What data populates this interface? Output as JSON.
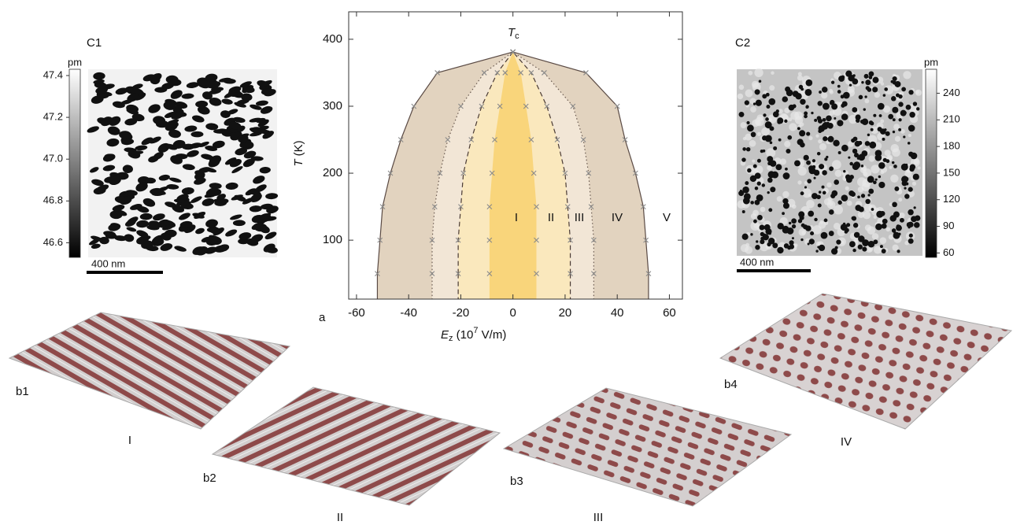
{
  "panel_label_a": "a",
  "chart_data": {
    "type": "phase-diagram",
    "x_label": {
      "symbol": "E",
      "sub": "z",
      "pre": " (10",
      "sup": "7",
      "post": " V/m)"
    },
    "y_label": {
      "symbol": "T",
      "unit": " (K)"
    },
    "tc_label": {
      "symbol": "T",
      "sub": "c"
    },
    "xlim": [
      -63,
      65
    ],
    "xticks": [
      -60,
      -40,
      -20,
      0,
      20,
      40,
      60
    ],
    "ylim": [
      12,
      441
    ],
    "yticks": [
      100,
      200,
      300,
      400
    ],
    "T": [
      50,
      100,
      150,
      200,
      250,
      300,
      350,
      381
    ],
    "series": [
      {
        "style": "solid",
        "color": "#5a4a44",
        "fill": "#e2d3bf",
        "E_left": [
          -52,
          -51,
          -50,
          -47,
          -43,
          -38,
          -29,
          0
        ],
        "E_right": [
          52,
          51,
          50,
          47,
          43,
          40,
          28,
          0
        ]
      },
      {
        "style": "dotted",
        "color": "#6a5a50",
        "fill": "#f2e6d6",
        "E_left": [
          -31,
          -31,
          -30,
          -28,
          -25,
          -20,
          -11,
          0
        ],
        "E_right": [
          31,
          31,
          30,
          29,
          27,
          23,
          12,
          0
        ]
      },
      {
        "style": "dashed",
        "color": "#4a3a34",
        "fill": "#fae8bd",
        "E_left": [
          -21,
          -21,
          -20,
          -19,
          -16,
          -12,
          -6,
          0
        ],
        "E_right": [
          22,
          22,
          21,
          20,
          17,
          13,
          7,
          0
        ]
      },
      {
        "style": "none",
        "color": "#f9d57b",
        "fill": "#f9d57b",
        "E_left": [
          -9,
          -9,
          -9,
          -8,
          -7,
          -5,
          -3,
          0
        ],
        "E_right": [
          9,
          9,
          9,
          8,
          7,
          5,
          3,
          0
        ]
      }
    ],
    "region_labels": [
      "I",
      "II",
      "III",
      "IV",
      "V"
    ],
    "marker_color": "#8a8a8a"
  },
  "c1": {
    "label": "C1",
    "scale_bar": "400 nm",
    "colorbar": {
      "unit": "pm",
      "lim": [
        46.53,
        47.43
      ],
      "ticks": [
        47.4,
        47.2,
        {
          "value": 47,
          "label": "47.0"
        },
        46.8,
        46.6
      ]
    }
  },
  "c2": {
    "label": "C2",
    "scale_bar": "400 nm",
    "colorbar": {
      "unit": "pm",
      "lim": [
        55,
        267
      ],
      "ticks": [
        240,
        210,
        180,
        150,
        120,
        90,
        60
      ]
    }
  },
  "b_panels": [
    {
      "label": "b1",
      "phase": "I"
    },
    {
      "label": "b2",
      "phase": "II"
    },
    {
      "label": "b3",
      "phase": "III"
    },
    {
      "label": "b4",
      "phase": "IV"
    }
  ]
}
